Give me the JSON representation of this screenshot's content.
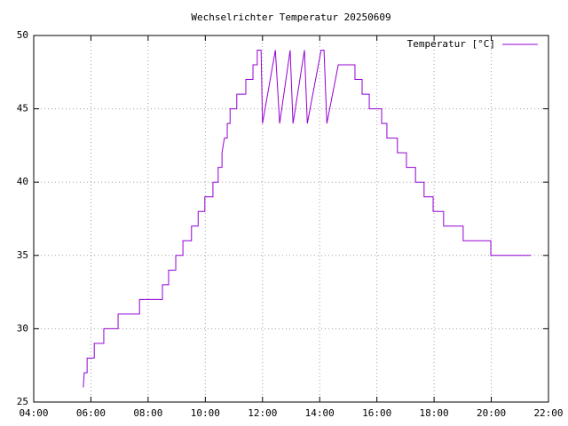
{
  "chart_data": {
    "type": "line",
    "title": "Wechselrichter Temperatur 20250609",
    "x": [
      "05:44",
      "05:46",
      "05:52",
      "05:52",
      "06:07",
      "06:07",
      "06:27",
      "06:27",
      "06:57",
      "06:57",
      "07:42",
      "07:42",
      "08:30",
      "08:30",
      "08:43",
      "08:43",
      "08:58",
      "08:58",
      "09:13",
      "09:13",
      "09:31",
      "09:31",
      "09:45",
      "09:45",
      "09:59",
      "09:59",
      "10:16",
      "10:16",
      "10:27",
      "10:27",
      "10:35",
      "10:35",
      "10:40",
      "10:46",
      "10:46",
      "10:52",
      "10:52",
      "11:06",
      "11:06",
      "11:25",
      "11:25",
      "11:40",
      "11:40",
      "11:49",
      "11:49",
      "11:57",
      "12:00",
      "12:27",
      "12:36",
      "12:58",
      "13:04",
      "13:28",
      "13:34",
      "14:03",
      "14:09",
      "14:15",
      "14:39",
      "15:14",
      "15:14",
      "15:29",
      "15:29",
      "15:44",
      "15:44",
      "16:10",
      "16:10",
      "16:21",
      "16:21",
      "16:43",
      "16:43",
      "17:02",
      "17:02",
      "17:21",
      "17:21",
      "17:39",
      "17:39",
      "17:58",
      "17:58",
      "18:05",
      "18:20",
      "18:20",
      "19:01",
      "19:01",
      "19:59",
      "19:59",
      "21:23"
    ],
    "series": [
      {
        "name": "Temperatur [°C]",
        "color": "#9400d3",
        "values": [
          26,
          27,
          27,
          28,
          28,
          29,
          29,
          30,
          30,
          31,
          31,
          32,
          32,
          33,
          33,
          34,
          34,
          35,
          35,
          36,
          36,
          37,
          37,
          38,
          38,
          39,
          39,
          40,
          40,
          41,
          41,
          42,
          43,
          43,
          44,
          44,
          45,
          45,
          46,
          46,
          47,
          47,
          48,
          48,
          49,
          49,
          44,
          49,
          44,
          49,
          44,
          49,
          44,
          49,
          49,
          44,
          48,
          48,
          47,
          47,
          46,
          46,
          45,
          45,
          44,
          44,
          43,
          43,
          42,
          42,
          41,
          41,
          40,
          40,
          39,
          39,
          38,
          38,
          38,
          37,
          37,
          36,
          36,
          35,
          35
        ]
      }
    ],
    "xlim": [
      "04:00",
      "22:00"
    ],
    "xticks": [
      "04:00",
      "06:00",
      "08:00",
      "10:00",
      "12:00",
      "14:00",
      "16:00",
      "18:00",
      "20:00",
      "22:00"
    ],
    "ylim": [
      25,
      50
    ],
    "yticks": [
      25,
      30,
      35,
      40,
      45,
      50
    ],
    "grid": true,
    "legend": "top-right"
  }
}
